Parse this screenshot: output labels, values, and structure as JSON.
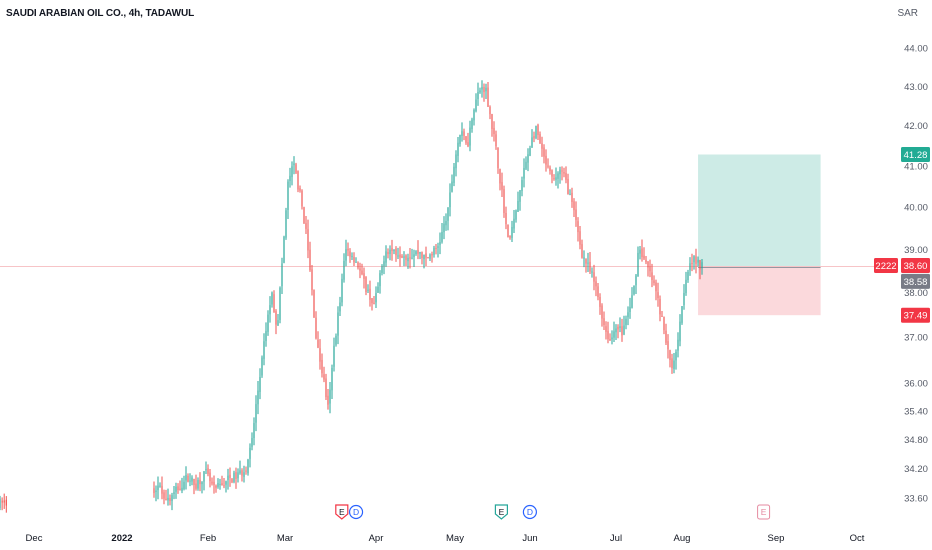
{
  "header": {
    "title": "SAUDI ARABIAN OIL CO., 4h, TADAWUL",
    "currency": "SAR"
  },
  "colors": {
    "up": "#26a69a",
    "down": "#ef5350",
    "profit_zone": "#cdebe6",
    "loss_zone": "#fbd9dc",
    "price_line": "#f7c4c7",
    "axis_text": "#555a66",
    "entry_label_bg": "#787b86"
  },
  "chart_data": {
    "type": "candlestick",
    "symbol": "SAUDI ARABIAN OIL CO.",
    "interval": "4h",
    "exchange": "TADAWUL",
    "y_axis": {
      "scale": "log",
      "ticks": [
        "44.00",
        "43.00",
        "42.00",
        "41.00",
        "40.00",
        "39.00",
        "38.00",
        "37.00",
        "36.00",
        "35.40",
        "34.80",
        "34.20",
        "33.60"
      ]
    },
    "x_axis": {
      "ticks": [
        "Dec",
        "2022",
        "Feb",
        "Mar",
        "Apr",
        "May",
        "Jun",
        "Jul",
        "Aug",
        "Sep",
        "Oct"
      ]
    },
    "series_path": [
      [
        "2021-11-30",
        33.5
      ],
      [
        "2021-12-31",
        33.2
      ],
      [
        "2022-01-09",
        33.55
      ],
      [
        "2022-01-12",
        33.75
      ],
      [
        "2022-01-14",
        33.85
      ],
      [
        "2022-01-18",
        33.55
      ],
      [
        "2022-01-22",
        33.85
      ],
      [
        "2022-01-25",
        34.05
      ],
      [
        "2022-01-27",
        33.85
      ],
      [
        "2022-01-31",
        34.1
      ],
      [
        "2022-02-03",
        33.75
      ],
      [
        "2022-02-07",
        33.95
      ],
      [
        "2022-02-11",
        34.05
      ],
      [
        "2022-02-14",
        34.2
      ],
      [
        "2022-02-16",
        34.7
      ],
      [
        "2022-02-18",
        35.7
      ],
      [
        "2022-02-21",
        37.1
      ],
      [
        "2022-02-23",
        38.0
      ],
      [
        "2022-02-25",
        37.2
      ],
      [
        "2022-02-27",
        38.9
      ],
      [
        "2022-03-01",
        40.7
      ],
      [
        "2022-03-03",
        41.0
      ],
      [
        "2022-03-05",
        40.3
      ],
      [
        "2022-03-07",
        39.5
      ],
      [
        "2022-03-09",
        38.2
      ],
      [
        "2022-03-11",
        36.8
      ],
      [
        "2022-03-13",
        36.2
      ],
      [
        "2022-03-15",
        35.4
      ],
      [
        "2022-03-17",
        36.8
      ],
      [
        "2022-03-19",
        37.8
      ],
      [
        "2022-03-21",
        39.0
      ],
      [
        "2022-03-23",
        38.9
      ],
      [
        "2022-03-25",
        38.7
      ],
      [
        "2022-03-27",
        38.3
      ],
      [
        "2022-03-29",
        38.0
      ],
      [
        "2022-03-31",
        37.7
      ],
      [
        "2022-04-02",
        38.3
      ],
      [
        "2022-04-04",
        39.0
      ],
      [
        "2022-04-08",
        38.95
      ],
      [
        "2022-04-12",
        38.85
      ],
      [
        "2022-04-16",
        38.95
      ],
      [
        "2022-04-18",
        38.75
      ],
      [
        "2022-04-20",
        38.9
      ],
      [
        "2022-04-22",
        39.0
      ],
      [
        "2022-04-24",
        39.4
      ],
      [
        "2022-04-26",
        39.9
      ],
      [
        "2022-04-28",
        41.0
      ],
      [
        "2022-04-30",
        41.8
      ],
      [
        "2022-05-03",
        41.6
      ],
      [
        "2022-05-05",
        42.5
      ],
      [
        "2022-05-07",
        42.9
      ],
      [
        "2022-05-09",
        43.0
      ],
      [
        "2022-05-11",
        42.2
      ],
      [
        "2022-05-13",
        41.3
      ],
      [
        "2022-05-15",
        40.3
      ],
      [
        "2022-05-17",
        39.2
      ],
      [
        "2022-05-19",
        39.6
      ],
      [
        "2022-05-21",
        40.3
      ],
      [
        "2022-05-23",
        41.0
      ],
      [
        "2022-05-25",
        41.6
      ],
      [
        "2022-05-27",
        41.9
      ],
      [
        "2022-05-29",
        41.3
      ],
      [
        "2022-05-31",
        40.9
      ],
      [
        "2022-06-02",
        40.6
      ],
      [
        "2022-06-04",
        40.9
      ],
      [
        "2022-06-06",
        40.7
      ],
      [
        "2022-06-08",
        40.2
      ],
      [
        "2022-06-10",
        39.6
      ],
      [
        "2022-06-12",
        38.9
      ],
      [
        "2022-06-14",
        38.6
      ],
      [
        "2022-06-16",
        38.3
      ],
      [
        "2022-06-18",
        37.8
      ],
      [
        "2022-06-20",
        37.2
      ],
      [
        "2022-06-22",
        36.9
      ],
      [
        "2022-06-24",
        37.3
      ],
      [
        "2022-06-26",
        37.1
      ],
      [
        "2022-06-28",
        37.5
      ],
      [
        "2022-06-30",
        38.0
      ],
      [
        "2022-07-02",
        39.1
      ],
      [
        "2022-07-04",
        38.7
      ],
      [
        "2022-07-06",
        38.4
      ],
      [
        "2022-07-08",
        38.0
      ],
      [
        "2022-07-10",
        37.4
      ],
      [
        "2022-07-12",
        36.7
      ],
      [
        "2022-07-14",
        36.3
      ],
      [
        "2022-07-16",
        37.2
      ],
      [
        "2022-07-18",
        38.2
      ],
      [
        "2022-07-20",
        38.8
      ],
      [
        "2022-07-22",
        38.7
      ],
      [
        "2022-07-24",
        38.6
      ]
    ],
    "position": {
      "type": "long",
      "entry": 38.58,
      "target": 41.28,
      "stop": 37.49,
      "start": "2022-07-22",
      "end": "2022-09-03"
    },
    "last_price": 38.6,
    "last_price_tag": "2222",
    "events": [
      {
        "date": "2022-03-19",
        "type": "earnings",
        "label": "E"
      },
      {
        "date": "2022-03-24",
        "type": "dividend",
        "label": "D"
      },
      {
        "date": "2022-05-14",
        "type": "earnings",
        "label": "E"
      },
      {
        "date": "2022-05-24",
        "type": "dividend",
        "label": "D"
      },
      {
        "date": "2022-08-14",
        "type": "earnings",
        "label": "E"
      }
    ]
  }
}
